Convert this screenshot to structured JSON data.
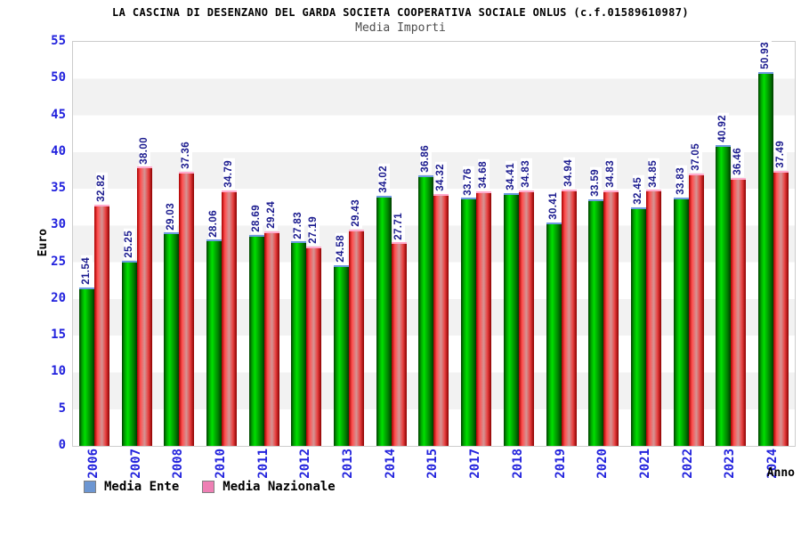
{
  "header": {
    "title": "LA CASCINA DI DESENZANO DEL GARDA SOCIETA COOPERATIVA SOCIALE ONLUS (c.f.01589610987)",
    "subtitle": "Media Importi"
  },
  "chart_data": {
    "type": "bar",
    "title": "Media Importi",
    "categories": [
      "2006",
      "2007",
      "2008",
      "2010",
      "2011",
      "2012",
      "2013",
      "2014",
      "2015",
      "2017",
      "2018",
      "2019",
      "2020",
      "2021",
      "2022",
      "2023",
      "2024"
    ],
    "series": [
      {
        "name": "Media Ente",
        "legend_color": "#6c96d2",
        "bar_style": "green-cylinder",
        "values": [
          21.54,
          25.25,
          29.03,
          28.06,
          28.69,
          27.83,
          24.58,
          34.02,
          36.86,
          33.76,
          34.41,
          30.41,
          33.59,
          32.45,
          33.83,
          40.92,
          50.93
        ]
      },
      {
        "name": "Media Nazionale",
        "legend_color": "#ee7fb4",
        "bar_style": "red-cylinder",
        "values": [
          32.82,
          38.0,
          37.36,
          34.79,
          29.24,
          27.19,
          29.43,
          27.71,
          34.32,
          34.68,
          34.83,
          34.94,
          34.83,
          34.85,
          37.05,
          36.46,
          37.49
        ]
      }
    ],
    "xlabel": "Anno",
    "ylabel": "Euro",
    "ylim": [
      0,
      55
    ],
    "yticks": [
      0,
      5,
      10,
      15,
      20,
      25,
      30,
      35,
      40,
      45,
      50,
      55
    ],
    "grid": "alternating-horizontal-bands",
    "legend_position": "bottom-left",
    "value_labels": "rotated-90-above-bars"
  },
  "colors": {
    "tick_label_blue": "#2222dd",
    "value_label_navy": "#1a1a8e",
    "band_gray": "#f2f2f2",
    "plot_border": "#cccccc",
    "green_bar_top_cap": "#6e9ae0",
    "red_bar_top_cap": "#ffaacc",
    "subtitle_gray": "#4d4d4d"
  }
}
